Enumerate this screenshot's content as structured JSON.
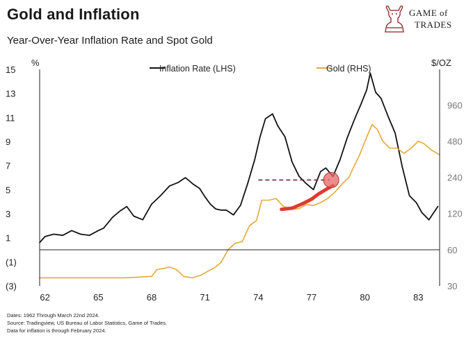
{
  "header": {
    "title": "Gold and Inflation",
    "subtitle": "Year-Over-Year Inflation Rate and Spot Gold"
  },
  "logo": {
    "line1": "GAME of",
    "line2": "TRADES"
  },
  "footer": {
    "lines": [
      "Dates: 1962 Through March 22nd 2024.",
      "Source: Tradingview, US Bureau of Labor Statistics, Game of Trades.",
      "Data for inflation is through February 2024."
    ]
  },
  "colors": {
    "inflation": "#111111",
    "gold": "#e3a93a",
    "highlight": "#e03a2e",
    "highlight_circle": "#e56565",
    "dashed": "#6b2a3a",
    "axis": "#222222",
    "tick_text": "#777777"
  },
  "chart_data": {
    "type": "line",
    "legend": {
      "placement": "top-center",
      "items": [
        "Inflation Rate (LHS)",
        "Gold (RHS)"
      ]
    },
    "left_axis": {
      "unit_label": "%",
      "ticks": [
        15,
        13,
        11,
        9,
        7,
        5,
        3,
        1,
        -1,
        -3
      ],
      "tick_labels": [
        "15",
        "13",
        "11",
        "9",
        "7",
        "5",
        "3",
        "1",
        "(1)",
        "(3)"
      ],
      "range": [
        -3,
        15
      ]
    },
    "right_axis": {
      "unit_label": "$/OZ",
      "scale": "log",
      "ticks": [
        960,
        480,
        240,
        120,
        60,
        30
      ],
      "tick_labels": [
        "960",
        "480",
        "240",
        "120",
        "60",
        "30"
      ],
      "range": [
        30,
        1900
      ]
    },
    "x_axis": {
      "tick_labels": [
        "62",
        "65",
        "68",
        "71",
        "74",
        "77",
        "80",
        "83"
      ],
      "tick_values": [
        1962,
        1965,
        1968,
        1971,
        1974,
        1977,
        1980,
        1983
      ],
      "range": [
        1961.7,
        1984.2
      ]
    },
    "series": [
      {
        "name": "Inflation Rate (LHS)",
        "axis": "left",
        "x": [
          1961.7,
          1962.0,
          1962.5,
          1963.0,
          1963.5,
          1964.0,
          1964.5,
          1965.0,
          1965.3,
          1965.8,
          1966.2,
          1966.6,
          1967.0,
          1967.5,
          1968.0,
          1968.5,
          1969.0,
          1969.5,
          1969.9,
          1970.3,
          1970.7,
          1971.0,
          1971.3,
          1971.6,
          1971.9,
          1972.2,
          1972.6,
          1973.0,
          1973.4,
          1973.8,
          1974.1,
          1974.4,
          1974.8,
          1975.1,
          1975.5,
          1975.9,
          1976.3,
          1976.7,
          1977.1,
          1977.5,
          1977.8,
          1978.2,
          1978.6,
          1979.0,
          1979.4,
          1979.8,
          1980.1,
          1980.3,
          1980.6,
          1980.9,
          1981.3,
          1981.7,
          1982.1,
          1982.5,
          1982.9,
          1983.2,
          1983.6,
          1984.1
        ],
        "values": [
          0.6,
          1.1,
          1.3,
          1.2,
          1.6,
          1.3,
          1.2,
          1.6,
          1.8,
          2.7,
          3.2,
          3.6,
          2.8,
          2.5,
          3.8,
          4.5,
          5.3,
          5.6,
          6.0,
          5.5,
          5.1,
          4.4,
          3.8,
          3.4,
          3.3,
          3.3,
          2.9,
          3.7,
          5.5,
          7.5,
          9.4,
          10.9,
          11.3,
          10.3,
          9.4,
          7.3,
          6.1,
          5.5,
          5.0,
          6.5,
          6.8,
          6.1,
          7.5,
          9.3,
          10.8,
          12.2,
          13.3,
          14.7,
          13.1,
          12.6,
          11.1,
          9.7,
          6.9,
          4.5,
          3.9,
          3.1,
          2.5,
          3.6
        ]
      },
      {
        "name": "Gold (RHS)",
        "axis": "right",
        "x": [
          1961.7,
          1964.0,
          1966.5,
          1968.0,
          1968.3,
          1968.7,
          1969.0,
          1969.4,
          1969.8,
          1970.3,
          1970.8,
          1971.2,
          1971.6,
          1971.9,
          1972.3,
          1972.7,
          1973.1,
          1973.5,
          1973.9,
          1974.2,
          1974.6,
          1975.0,
          1975.4,
          1975.9,
          1976.3,
          1976.7,
          1977.1,
          1977.5,
          1977.9,
          1978.3,
          1978.7,
          1979.1,
          1979.4,
          1979.7,
          1980.1,
          1980.4,
          1980.7,
          1981.0,
          1981.4,
          1981.8,
          1982.2,
          1982.6,
          1983.0,
          1983.3,
          1983.8,
          1984.2
        ],
        "values": [
          35,
          35,
          35,
          36,
          41,
          42,
          43,
          41,
          36,
          35,
          37,
          40,
          43,
          47,
          60,
          68,
          70,
          95,
          105,
          155,
          155,
          160,
          138,
          130,
          132,
          142,
          140,
          148,
          160,
          180,
          210,
          240,
          300,
          370,
          520,
          660,
          600,
          480,
          420,
          420,
          380,
          420,
          480,
          460,
          400,
          370
        ]
      },
      {
        "name": "",
        "axis": "right",
        "style": "highlight",
        "x": [
          1975.3,
          1975.9,
          1976.5,
          1977.0,
          1977.4,
          1977.8,
          1978.2
        ],
        "values": [
          130,
          133,
          145,
          158,
          175,
          190,
          205
        ]
      }
    ],
    "annotations": [
      {
        "type": "dashed-line",
        "axis": "left",
        "y": 5.8,
        "x_from": 1974.0,
        "x_to": 1978.0
      },
      {
        "type": "circle",
        "x": 1978.1,
        "left_value": 5.8
      }
    ]
  }
}
